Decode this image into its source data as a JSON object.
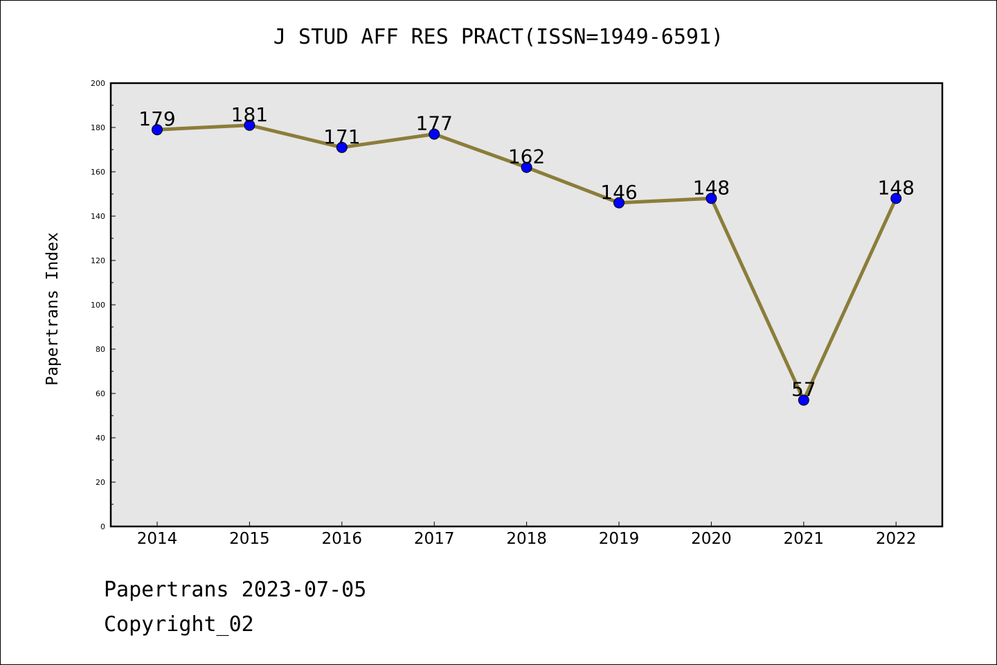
{
  "chart_data": {
    "type": "line",
    "title": "J STUD AFF RES PRACT(ISSN=1949-6591)",
    "xlabel": "",
    "ylabel": "Papertrans Index",
    "categories": [
      "2014",
      "2015",
      "2016",
      "2017",
      "2018",
      "2019",
      "2020",
      "2021",
      "2022"
    ],
    "values": [
      179,
      181,
      171,
      177,
      162,
      146,
      148,
      57,
      148
    ],
    "data_labels": [
      "179",
      "181",
      "171",
      "177",
      "162",
      "146",
      "148",
      "57",
      "148"
    ],
    "ylim": [
      0,
      200
    ],
    "yticks": [
      0,
      20,
      40,
      60,
      80,
      100,
      120,
      140,
      160,
      180,
      200
    ],
    "ytick_labels": [
      "0",
      "20",
      "40",
      "60",
      "80",
      "100",
      "120",
      "140",
      "160",
      "180",
      "200"
    ],
    "grid": false,
    "legend": "none",
    "colors": {
      "line": "#8B7D3A",
      "marker": "#0000FF",
      "plot_background": "#E6E6E6"
    }
  },
  "footer": {
    "date_text": "Papertrans 2023-07-05",
    "copyright_text": "Copyright_02"
  }
}
